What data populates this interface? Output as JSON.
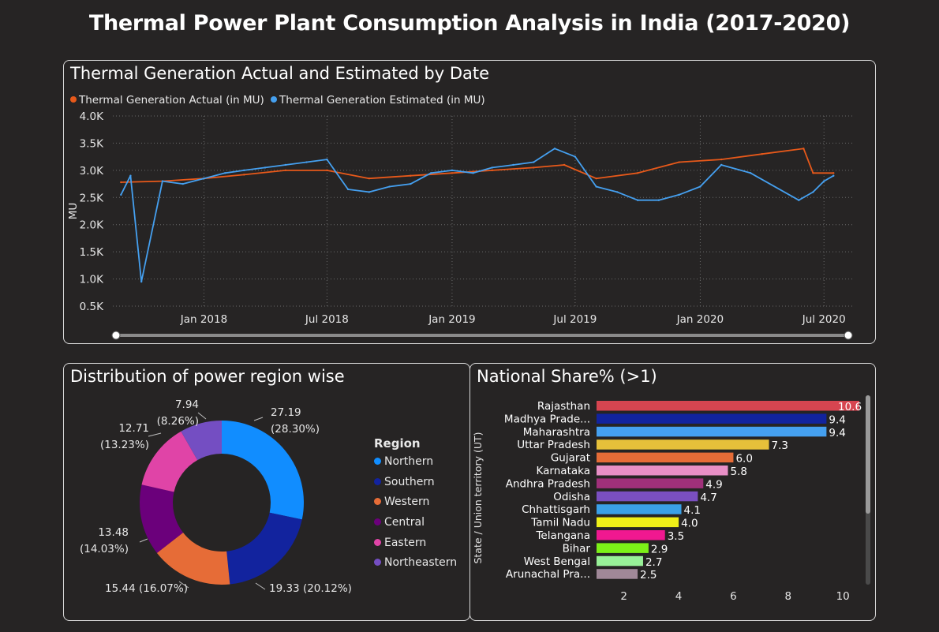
{
  "page": {
    "title": "Thermal Power Plant Consumption Analysis in India (2017-2020)"
  },
  "colors": {
    "background": "#262424",
    "actual": "#e8591a",
    "estimated": "#45a0f0",
    "grid": "#6a6a6a"
  },
  "line_panel": {
    "title": "Thermal Generation Actual and Estimated by Date",
    "legend": [
      {
        "label": "Thermal Generation Actual (in MU)",
        "color": "#e8591a"
      },
      {
        "label": "Thermal Generation Estimated (in MU)",
        "color": "#45a0f0"
      }
    ]
  },
  "donut_panel": {
    "title": "Distribution of power region wise",
    "legend_title": "Region"
  },
  "bar_panel": {
    "title": "National Share% (>1)"
  },
  "chart_data": [
    {
      "type": "line",
      "title": "Thermal Generation Actual and Estimated by Date",
      "ylabel": "MU",
      "ylim": [
        500,
        4000
      ],
      "y_ticks": [
        "0.5K",
        "1.0K",
        "1.5K",
        "2.0K",
        "2.5K",
        "3.0K",
        "3.5K",
        "4.0K"
      ],
      "x_ticks": [
        "Jan 2018",
        "Jul 2018",
        "Jan 2019",
        "Jul 2019",
        "Jan 2020",
        "Jul 2020"
      ],
      "grid": true,
      "legend_position": "top-left",
      "series": [
        {
          "name": "Thermal Generation Actual (in MU)",
          "x": [
            "2017-09-01",
            "2017-11-01",
            "2018-01-01",
            "2018-03-01",
            "2018-05-01",
            "2018-07-01",
            "2018-09-01",
            "2018-11-01",
            "2019-01-01",
            "2019-03-01",
            "2019-05-01",
            "2019-06-15",
            "2019-08-01",
            "2019-10-01",
            "2019-12-01",
            "2020-02-01",
            "2020-04-01",
            "2020-06-01",
            "2020-06-15",
            "2020-07-15"
          ],
          "values": [
            2780,
            2800,
            2850,
            2920,
            3000,
            3000,
            2850,
            2900,
            2950,
            3000,
            3050,
            3100,
            2850,
            2950,
            3150,
            3200,
            3300,
            3400,
            2950,
            2950
          ]
        },
        {
          "name": "Thermal Generation Estimated (in MU)",
          "x": [
            "2017-09-01",
            "2017-09-15",
            "2017-10-01",
            "2017-11-01",
            "2017-12-01",
            "2018-01-01",
            "2018-02-01",
            "2018-03-01",
            "2018-04-01",
            "2018-05-01",
            "2018-06-01",
            "2018-07-01",
            "2018-08-01",
            "2018-09-01",
            "2018-10-01",
            "2018-11-01",
            "2018-12-01",
            "2019-01-01",
            "2019-02-01",
            "2019-03-01",
            "2019-04-01",
            "2019-05-01",
            "2019-06-01",
            "2019-07-01",
            "2019-08-01",
            "2019-09-01",
            "2019-10-01",
            "2019-11-01",
            "2019-12-01",
            "2020-01-01",
            "2020-02-01",
            "2020-03-15",
            "2020-05-25",
            "2020-06-15",
            "2020-07-01",
            "2020-07-15"
          ],
          "values": [
            2550,
            2900,
            950,
            2800,
            2750,
            2850,
            2950,
            3000,
            3050,
            3100,
            3150,
            3200,
            2650,
            2600,
            2700,
            2750,
            2950,
            3000,
            2950,
            3050,
            3100,
            3150,
            3400,
            3250,
            2700,
            2600,
            2450,
            2450,
            2550,
            2700,
            3100,
            2950,
            2450,
            2600,
            2800,
            2900
          ]
        }
      ]
    },
    {
      "type": "pie",
      "subtype": "donut",
      "title": "Distribution of power region wise",
      "legend_title": "Region",
      "legend_position": "right",
      "slices": [
        {
          "name": "Northern",
          "value": 27.19,
          "label": "27.19",
          "pct": "(28.30%)",
          "color": "#118dff"
        },
        {
          "name": "Southern",
          "value": 19.33,
          "label": "19.33 (20.12%)",
          "color": "#12239e"
        },
        {
          "name": "Western",
          "value": 15.44,
          "label": "15.44 (16.07%)",
          "color": "#e66c37"
        },
        {
          "name": "Central",
          "value": 13.48,
          "label": "13.48",
          "pct": "(14.03%)",
          "color": "#6b007b"
        },
        {
          "name": "Eastern",
          "value": 12.71,
          "label": "12.71",
          "pct": "(13.23%)",
          "color": "#e044a7"
        },
        {
          "name": "Northeastern",
          "value": 7.94,
          "label": "7.94",
          "pct": "(8.26%)",
          "color": "#744ec2"
        }
      ]
    },
    {
      "type": "bar",
      "orientation": "horizontal",
      "title": "National Share% (>1)",
      "ylabel": "State / Union territory (UT)",
      "xlim": [
        1,
        10.6
      ],
      "x_ticks": [
        "2",
        "4",
        "6",
        "8",
        "10"
      ],
      "categories": [
        "Rajasthan",
        "Madhya Prade...",
        "Maharashtra",
        "Uttar Pradesh",
        "Gujarat",
        "Karnataka",
        "Andhra Pradesh",
        "Odisha",
        "Chhattisgarh",
        "Tamil Nadu",
        "Telangana",
        "Bihar",
        "West Bengal",
        "Arunachal Pra..."
      ],
      "values": [
        10.6,
        9.4,
        9.4,
        7.3,
        6.0,
        5.8,
        4.9,
        4.7,
        4.1,
        4.0,
        3.5,
        2.9,
        2.7,
        2.5
      ],
      "labels": [
        "10.6",
        "9.4",
        "9.4",
        "7.3",
        "6.0",
        "5.8",
        "4.9",
        "4.7",
        "4.1",
        "4.0",
        "3.5",
        "2.9",
        "2.7",
        "2.5"
      ],
      "colors": [
        "#d64550",
        "#12239e",
        "#45a0f0",
        "#e6c03a",
        "#e66c37",
        "#e88fc6",
        "#a0307a",
        "#7a4fc0",
        "#3aa0e8",
        "#f0f018",
        "#f01890",
        "#7cf018",
        "#98f098",
        "#a08898"
      ]
    }
  ]
}
